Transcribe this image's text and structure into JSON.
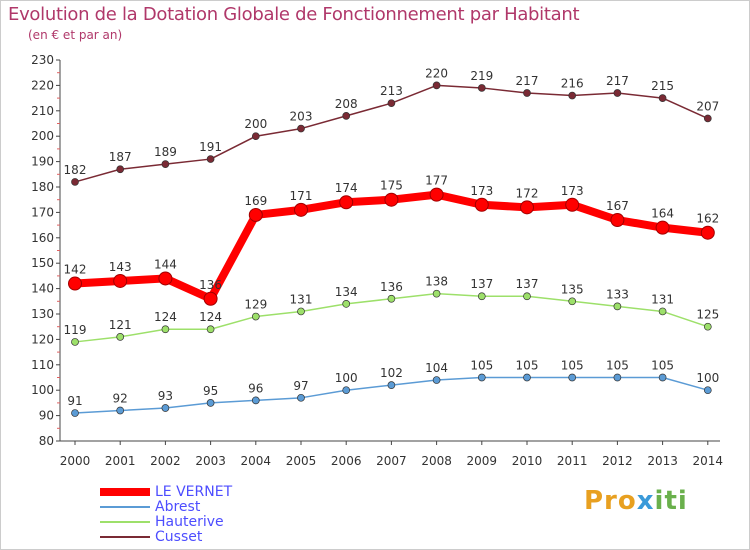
{
  "header": {
    "title": "Evolution de la Dotation Globale de Fonctionnement par Habitant",
    "subtitle": "(en € et par an)"
  },
  "logo": {
    "part1": "Pro",
    "part2": "x",
    "part3": "iti"
  },
  "chart_data": {
    "type": "line",
    "title": "Evolution de la Dotation Globale de Fonctionnement par Habitant",
    "subtitle": "(en € et par an)",
    "xlabel": "",
    "ylabel": "",
    "x": [
      "2000",
      "2001",
      "2002",
      "2003",
      "2004",
      "2005",
      "2006",
      "2007",
      "2008",
      "2009",
      "2010",
      "2011",
      "2012",
      "2013",
      "2014"
    ],
    "ylim": [
      80,
      230
    ],
    "yticks": [
      80,
      90,
      100,
      110,
      120,
      130,
      140,
      150,
      160,
      170,
      180,
      190,
      200,
      210,
      220,
      230
    ],
    "grid": false,
    "legend_position": "bottom-left",
    "series": [
      {
        "name": "LE VERNET",
        "color": "#ff0000",
        "values": [
          142,
          143,
          144,
          136,
          169,
          171,
          174,
          175,
          177,
          173,
          172,
          173,
          167,
          164,
          162
        ],
        "labels": [
          "142",
          "143",
          "144",
          "136",
          "169",
          "171",
          "174",
          "175",
          "177",
          "173",
          "172",
          "173",
          "167",
          "164",
          "162"
        ]
      },
      {
        "name": "Abrest",
        "color": "#5b9bd5",
        "values": [
          91,
          92,
          93,
          95,
          96,
          97,
          100,
          102,
          104,
          105,
          105,
          105,
          105,
          105,
          100
        ],
        "labels": [
          "91",
          "92",
          "93",
          "95",
          "96",
          "97",
          "100",
          "102",
          "104",
          "105",
          "105",
          "105",
          "105",
          "105",
          "100"
        ]
      },
      {
        "name": "Hauterive",
        "color": "#9de06a",
        "values": [
          119,
          121,
          124,
          124,
          129,
          131,
          134,
          136,
          138,
          137,
          137,
          135,
          133,
          131,
          125
        ],
        "labels": [
          "119",
          "121",
          "124",
          "124",
          "129",
          "131",
          "134",
          "136",
          "138",
          "137",
          "137",
          "135",
          "133",
          "131",
          "125"
        ]
      },
      {
        "name": "Cusset",
        "color": "#7a2a34",
        "values": [
          182,
          187,
          189,
          191,
          200,
          203,
          208,
          213,
          220,
          219,
          217,
          216,
          217,
          215,
          207
        ],
        "labels": [
          "182",
          "187",
          "189",
          "191",
          "200",
          "203",
          "208",
          "213",
          "220",
          "219",
          "217",
          "216",
          "217",
          "215",
          "207"
        ]
      }
    ]
  }
}
